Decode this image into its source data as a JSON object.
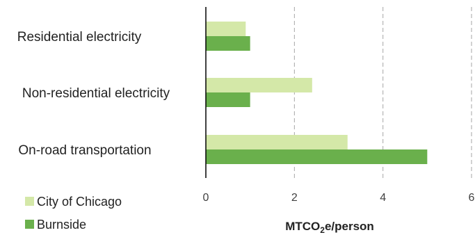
{
  "chart_data": {
    "type": "bar",
    "orientation": "horizontal",
    "categories": [
      "Residential electricity",
      "Non-residential electricity",
      "On-road transportation"
    ],
    "series": [
      {
        "name": "City of Chicago",
        "color": "#d4e8a8",
        "values": [
          0.9,
          2.4,
          3.2
        ]
      },
      {
        "name": "Burnside",
        "color": "#6ab04c",
        "values": [
          1.0,
          1.0,
          5.0
        ]
      }
    ],
    "xlim": [
      0,
      6
    ],
    "xticks": [
      "0",
      "2",
      "4",
      "6"
    ],
    "xlabel": {
      "prefix": "MTCO",
      "subscript": "2",
      "suffix": "e/person"
    },
    "grid": "vertical-dashed",
    "legend_position": "bottom-left"
  }
}
